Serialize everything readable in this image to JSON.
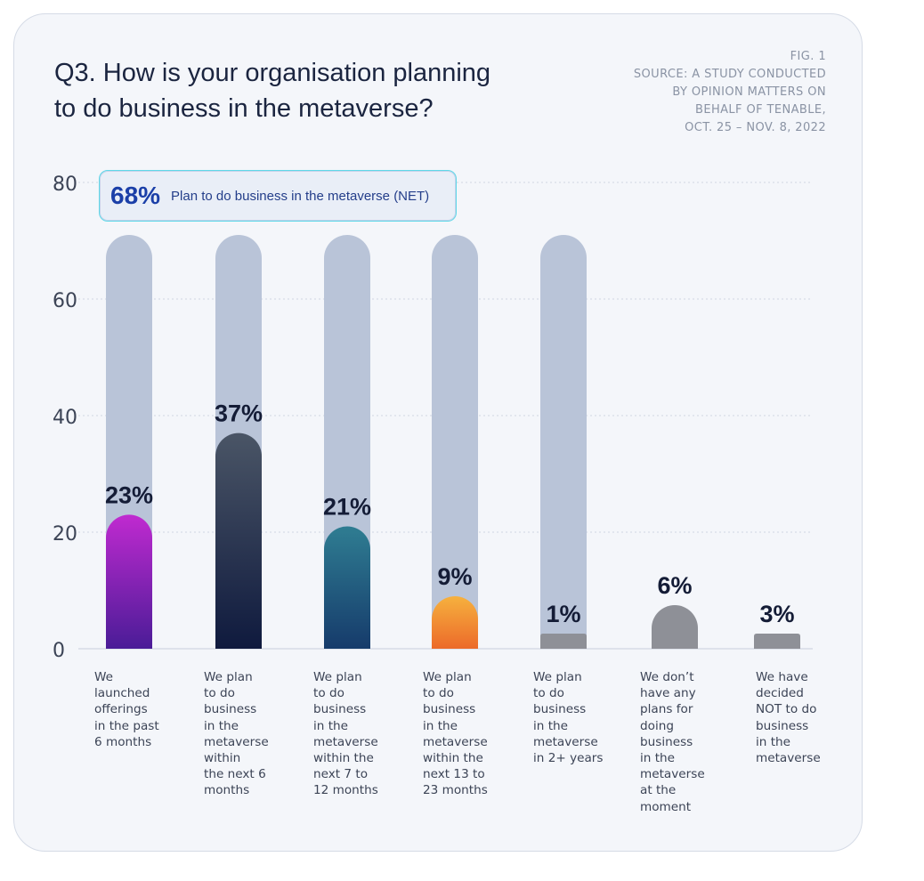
{
  "title_lines": [
    "Q3. How is your organisation planning",
    "to do business in the metaverse?"
  ],
  "source_lines": [
    "FIG. 1",
    "SOURCE: A STUDY CONDUCTED",
    "BY OPINION MATTERS ON",
    "BEHALF OF TENABLE,",
    "OCT. 25 – NOV. 8, 2022"
  ],
  "net": {
    "value": "68%",
    "label": "Plan to do business in the metaverse (NET)"
  },
  "colors": {
    "background_track": "#b9c4d8",
    "bar_1": [
      "#c02ad0",
      "#4a1c97"
    ],
    "bar_2": [
      "#4a5566",
      "#0f1a3e"
    ],
    "bar_3": [
      "#2f7d92",
      "#163b6b"
    ],
    "bar_4": [
      "#f6b13e",
      "#ec6a2a"
    ],
    "grey": "#8e9097"
  },
  "chart_data": {
    "type": "bar",
    "title": "Q3. How is your organisation planning to do business in the metaverse?",
    "yticks": [
      "0",
      "20",
      "40",
      "60",
      "80"
    ],
    "ylim": [
      0,
      80
    ],
    "grid": true,
    "track_value": 71,
    "categories": [
      [
        "We",
        "launched",
        "offerings",
        "in the past",
        "6 months"
      ],
      [
        "We plan",
        "to do",
        "business",
        "in the",
        "metaverse",
        "within",
        "the next 6",
        "months"
      ],
      [
        "We plan",
        "to do",
        "business",
        "in the",
        "metaverse",
        "within the",
        "next 7 to",
        "12 months"
      ],
      [
        "We plan",
        "to do",
        "business",
        "in the",
        "metaverse",
        "within the",
        "next 13 to",
        "23 months"
      ],
      [
        "We plan",
        "to do",
        "business",
        "in the",
        "metaverse",
        "in 2+ years"
      ],
      [
        "We don’t",
        "have any",
        "plans for",
        "doing",
        "business",
        "in the",
        "metaverse",
        "at the",
        "moment"
      ],
      [
        "We have",
        "decided",
        "NOT to do",
        "business",
        "in the",
        "metaverse"
      ]
    ],
    "values": [
      23,
      37,
      21,
      9,
      1,
      6,
      3
    ],
    "value_labels": [
      "23%",
      "37%",
      "21%",
      "9%",
      "1%",
      "6%",
      "3%"
    ],
    "has_track": [
      true,
      true,
      true,
      true,
      true,
      false,
      false
    ],
    "fills": [
      "bar_1",
      "bar_2",
      "bar_3",
      "bar_4",
      "grey",
      "grey",
      "grey"
    ]
  }
}
